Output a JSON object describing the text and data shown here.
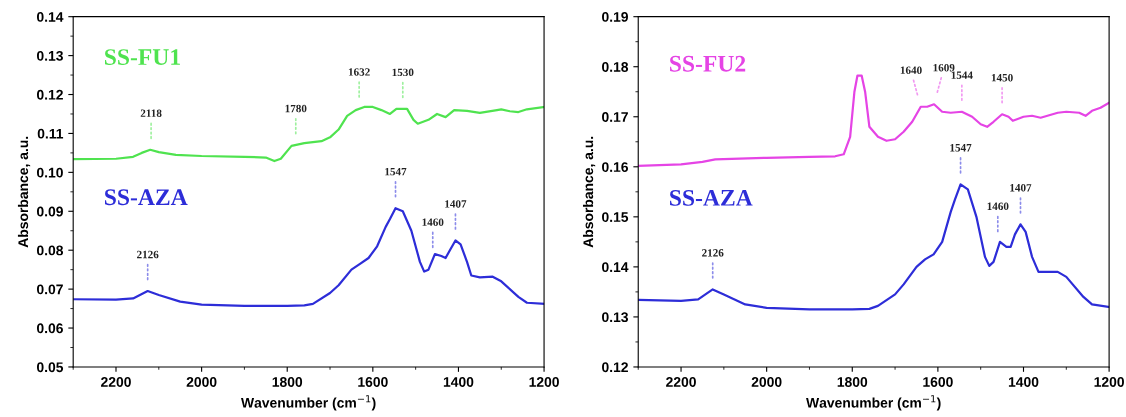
{
  "chart_data": [
    {
      "type": "line",
      "xlabel": "Wavenumber (cm$^{−1}$)",
      "ylabel": "Absorbance, a.u.",
      "xlim": [
        2300,
        1200
      ],
      "xticks": [
        2200,
        2000,
        1800,
        1600,
        1400,
        1200
      ],
      "ylim": [
        0.05,
        0.14
      ],
      "yticks": [
        0.05,
        0.06,
        0.07,
        0.08,
        0.09,
        {
          "value": 0.1,
          "label": "0.10"
        },
        0.11,
        0.12,
        0.13,
        0.14
      ],
      "grid": false,
      "legend": false,
      "series": [
        {
          "name": "SS-FU1",
          "color": "#4fe34f",
          "x": [
            2300,
            2200,
            2160,
            2140,
            2120,
            2100,
            2060,
            2000,
            1900,
            1850,
            1830,
            1815,
            1790,
            1760,
            1720,
            1700,
            1680,
            1660,
            1640,
            1620,
            1600,
            1580,
            1560,
            1545,
            1520,
            1505,
            1495,
            1470,
            1450,
            1430,
            1410,
            1380,
            1350,
            1310,
            1300,
            1280,
            1260,
            1240,
            1200
          ],
          "values": [
            0.1034,
            0.1035,
            0.104,
            0.105,
            0.1058,
            0.1052,
            0.1045,
            0.1042,
            0.104,
            0.1038,
            0.1029,
            0.1035,
            0.1068,
            0.1075,
            0.108,
            0.109,
            0.111,
            0.1145,
            0.116,
            0.1168,
            0.1168,
            0.116,
            0.115,
            0.1163,
            0.1163,
            0.1135,
            0.1125,
            0.1135,
            0.115,
            0.1142,
            0.116,
            0.1158,
            0.1153,
            0.116,
            0.1162,
            0.1157,
            0.1155,
            0.1162,
            0.1168
          ]
        },
        {
          "name": "SS-AZA",
          "color": "#2d2dd8",
          "x": [
            2300,
            2200,
            2160,
            2126,
            2100,
            2050,
            2000,
            1900,
            1800,
            1760,
            1740,
            1700,
            1680,
            1650,
            1630,
            1610,
            1590,
            1570,
            1560,
            1547,
            1530,
            1510,
            1490,
            1480,
            1470,
            1455,
            1440,
            1430,
            1420,
            1407,
            1395,
            1380,
            1370,
            1350,
            1320,
            1300,
            1260,
            1240,
            1200
          ],
          "values": [
            0.0674,
            0.0673,
            0.0676,
            0.0695,
            0.0685,
            0.0668,
            0.066,
            0.0657,
            0.0657,
            0.0658,
            0.0662,
            0.069,
            0.071,
            0.075,
            0.0765,
            0.078,
            0.081,
            0.086,
            0.088,
            0.0908,
            0.09,
            0.085,
            0.077,
            0.0745,
            0.075,
            0.079,
            0.0785,
            0.078,
            0.08,
            0.0825,
            0.0815,
            0.077,
            0.0735,
            0.073,
            0.0732,
            0.072,
            0.068,
            0.0665,
            0.0662
          ]
        }
      ],
      "annotations": [
        {
          "text": "2118",
          "x": 2118,
          "y": 0.1058
        },
        {
          "text": "1780",
          "x": 1780,
          "y": 0.107
        },
        {
          "text": "1632",
          "x": 1632,
          "y": 0.1164
        },
        {
          "text": "1530",
          "x": 1530,
          "y": 0.1163
        },
        {
          "text": "2126",
          "x": 2126,
          "y": 0.0695
        },
        {
          "text": "1547",
          "x": 1547,
          "y": 0.0908
        },
        {
          "text": "1460",
          "x": 1460,
          "y": 0.0778
        },
        {
          "text": "1407",
          "x": 1407,
          "y": 0.0825
        }
      ]
    },
    {
      "type": "line",
      "xlabel": "Wavenumber (cm$^{−1}$)",
      "ylabel": "Absorbance, a.u.",
      "xlim": [
        2300,
        1200
      ],
      "xticks": [
        2200,
        2000,
        1800,
        1600,
        1400,
        1200
      ],
      "ylim": [
        0.12,
        0.19
      ],
      "yticks": [
        0.12,
        0.13,
        0.14,
        0.15,
        0.16,
        0.17,
        0.18,
        0.19
      ],
      "grid": false,
      "legend": false,
      "series": [
        {
          "name": "SS-FU2",
          "color": "#e544e5",
          "x": [
            2300,
            2200,
            2150,
            2120,
            2000,
            1900,
            1840,
            1820,
            1805,
            1795,
            1788,
            1778,
            1770,
            1760,
            1740,
            1720,
            1700,
            1680,
            1660,
            1640,
            1625,
            1609,
            1590,
            1570,
            1544,
            1520,
            1500,
            1485,
            1470,
            1450,
            1435,
            1425,
            1400,
            1380,
            1360,
            1320,
            1300,
            1270,
            1255,
            1240,
            1220,
            1200
          ],
          "values": [
            0.1602,
            0.1605,
            0.161,
            0.1615,
            0.1618,
            0.162,
            0.1621,
            0.1625,
            0.166,
            0.175,
            0.1782,
            0.1782,
            0.175,
            0.168,
            0.166,
            0.1652,
            0.1655,
            0.167,
            0.169,
            0.172,
            0.172,
            0.1725,
            0.171,
            0.1708,
            0.171,
            0.17,
            0.1685,
            0.168,
            0.169,
            0.1705,
            0.17,
            0.1692,
            0.17,
            0.1702,
            0.1698,
            0.1708,
            0.171,
            0.1708,
            0.1702,
            0.1712,
            0.1718,
            0.1728
          ]
        },
        {
          "name": "SS-AZA",
          "color": "#2d2dd8",
          "x": [
            2300,
            2200,
            2160,
            2126,
            2100,
            2050,
            2000,
            1900,
            1800,
            1760,
            1740,
            1700,
            1680,
            1650,
            1630,
            1610,
            1590,
            1570,
            1560,
            1547,
            1530,
            1510,
            1490,
            1480,
            1470,
            1455,
            1440,
            1430,
            1420,
            1407,
            1395,
            1380,
            1365,
            1340,
            1320,
            1300,
            1260,
            1240,
            1200
          ],
          "values": [
            0.1334,
            0.1332,
            0.1335,
            0.1355,
            0.1345,
            0.1325,
            0.1318,
            0.1315,
            0.1315,
            0.1316,
            0.1322,
            0.1345,
            0.1365,
            0.14,
            0.1415,
            0.1425,
            0.145,
            0.151,
            0.1535,
            0.1565,
            0.1555,
            0.15,
            0.142,
            0.1402,
            0.141,
            0.145,
            0.144,
            0.144,
            0.1465,
            0.1485,
            0.147,
            0.142,
            0.139,
            0.139,
            0.139,
            0.138,
            0.134,
            0.1325,
            0.132
          ]
        }
      ],
      "annotations": [
        {
          "text": "1640",
          "x": 1640,
          "y": 0.172
        },
        {
          "text": "1609",
          "x": 1609,
          "y": 0.1725
        },
        {
          "text": "1544",
          "x": 1544,
          "y": 0.171
        },
        {
          "text": "1450",
          "x": 1450,
          "y": 0.1705
        },
        {
          "text": "2126",
          "x": 2126,
          "y": 0.1355
        },
        {
          "text": "1547",
          "x": 1547,
          "y": 0.1565
        },
        {
          "text": "1460",
          "x": 1460,
          "y": 0.1448
        },
        {
          "text": "1407",
          "x": 1407,
          "y": 0.1485
        }
      ]
    }
  ]
}
